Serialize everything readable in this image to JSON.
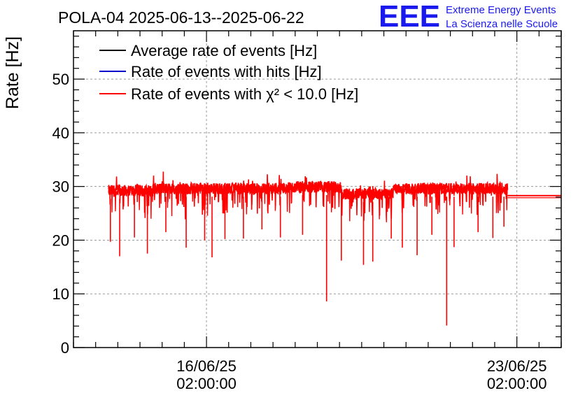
{
  "header": {
    "title": "POLA-04 2025-06-13--2025-06-22",
    "logo_text": "EEE",
    "brand_line1": "Extreme Energy Events",
    "brand_line2": "La Scienza nelle Scuole",
    "brand_color": "#1a1aee"
  },
  "chart_data": {
    "type": "line",
    "title": "POLA-04 2025-06-13--2025-06-22",
    "ylabel": "Rate [Hz]",
    "xlabel": "",
    "xlim": [
      "2025-06-13T02:00:00",
      "2025-06-24T02:00:00"
    ],
    "ylim": [
      0,
      59
    ],
    "yticks": [
      0,
      10,
      20,
      30,
      40,
      50
    ],
    "xticks": [
      {
        "line1": "16/06/25",
        "line2": "02:00:00",
        "value": "2025-06-16T02:00:00"
      },
      {
        "line1": "23/06/25",
        "line2": "02:00:00",
        "value": "2025-06-23T02:00:00"
      }
    ],
    "grid": true,
    "legend_position": "top-left",
    "data_start": "2025-06-13T21:00:00",
    "data_end": "2025-06-22T21:00:00",
    "baseline_segments": [
      {
        "start": "2025-06-13T21:00:00",
        "end": "2025-06-14T21:00:00",
        "value": 29.2
      },
      {
        "start": "2025-06-14T21:00:00",
        "end": "2025-06-17T21:00:00",
        "value": 29.6
      },
      {
        "start": "2025-06-17T21:00:00",
        "end": "2025-06-19T03:00:00",
        "value": 29.9
      },
      {
        "start": "2025-06-19T03:00:00",
        "end": "2025-06-20T07:00:00",
        "value": 28.6
      },
      {
        "start": "2025-06-20T07:00:00",
        "end": "2025-06-22T21:00:00",
        "value": 29.6
      }
    ],
    "flat_segment": {
      "start": "2025-06-22T21:00:00",
      "end": "2025-06-24T02:00:00",
      "value": 28.3
    },
    "dips": [
      {
        "x": "2025-06-13T22:00:00",
        "y": 19.7
      },
      {
        "x": "2025-06-14T03:00:00",
        "y": 17.0
      },
      {
        "x": "2025-06-14T11:00:00",
        "y": 20.5
      },
      {
        "x": "2025-06-14T18:00:00",
        "y": 17.5
      },
      {
        "x": "2025-06-15T04:00:00",
        "y": 21.5
      },
      {
        "x": "2025-06-15T15:00:00",
        "y": 18.6
      },
      {
        "x": "2025-06-16T01:00:00",
        "y": 20.0
      },
      {
        "x": "2025-06-16T05:00:00",
        "y": 16.8
      },
      {
        "x": "2025-06-16T12:00:00",
        "y": 20.2
      },
      {
        "x": "2025-06-16T22:00:00",
        "y": 20.3
      },
      {
        "x": "2025-06-17T08:00:00",
        "y": 22.0
      },
      {
        "x": "2025-06-17T18:00:00",
        "y": 20.5
      },
      {
        "x": "2025-06-18T06:00:00",
        "y": 21.0
      },
      {
        "x": "2025-06-18T19:00:00",
        "y": 8.6
      },
      {
        "x": "2025-06-19T03:00:00",
        "y": 16.2
      },
      {
        "x": "2025-06-19T15:00:00",
        "y": 15.4
      },
      {
        "x": "2025-06-19T20:00:00",
        "y": 16.0
      },
      {
        "x": "2025-06-20T06:00:00",
        "y": 20.3
      },
      {
        "x": "2025-06-20T12:00:00",
        "y": 18.6
      },
      {
        "x": "2025-06-20T20:00:00",
        "y": 17.2
      },
      {
        "x": "2025-06-21T04:00:00",
        "y": 21.0
      },
      {
        "x": "2025-06-21T12:00:00",
        "y": 4.1
      },
      {
        "x": "2025-06-21T16:00:00",
        "y": 18.7
      },
      {
        "x": "2025-06-22T05:00:00",
        "y": 21.5
      },
      {
        "x": "2025-06-22T13:00:00",
        "y": 20.4
      },
      {
        "x": "2025-06-22T19:00:00",
        "y": 22.5
      }
    ],
    "series": [
      {
        "name": "Average rate of events [Hz]",
        "color": "#000000"
      },
      {
        "name": "Rate of events with hits [Hz]",
        "color": "#0000cc"
      },
      {
        "name": "Rate of events with χ² < 10.0 [Hz]",
        "color": "#ff0000"
      }
    ]
  }
}
